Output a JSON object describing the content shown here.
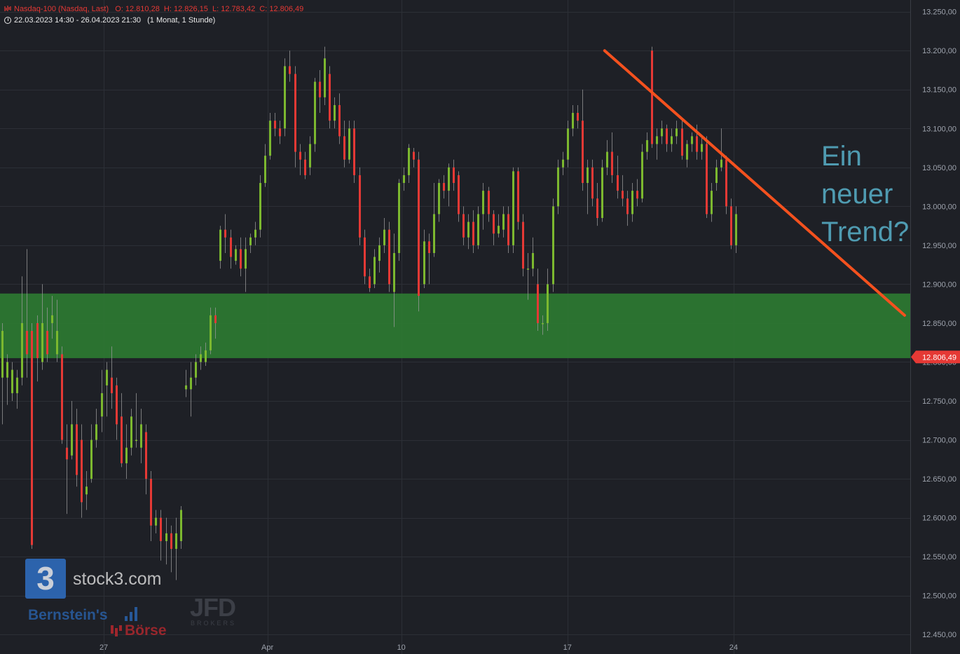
{
  "header": {
    "instrument": "Nasdaq-100 (Nasdaq, Last)",
    "ohlc": "O: 12.810,28  H: 12.826,15  L: 12.783,42  C: 12.806,49",
    "range": "22.03.2023 14:30 - 26.04.2023 21:30",
    "interval": "(1 Monat, 1 Stunde)"
  },
  "branding": {
    "logo_glyph": "3",
    "logo_text": "stock3.com",
    "partner_1": "Bernstein's",
    "partner_2": "Börse",
    "partner_3": "JFD",
    "partner_3_sub": "BROKERS"
  },
  "annotation": {
    "line1": "Ein",
    "line2": "neuer",
    "line3": "Trend?"
  },
  "chart_data": {
    "type": "candlestick",
    "timeframe": "1 hour",
    "ylim": [
      12425,
      13265
    ],
    "yticks": [
      12450,
      12500,
      12550,
      12600,
      12650,
      12700,
      12750,
      12800,
      12850,
      12900,
      12950,
      13000,
      13050,
      13100,
      13150,
      13200,
      13250
    ],
    "ytick_labels": [
      "12.450,00",
      "12.500,00",
      "12.550,00",
      "12.600,00",
      "12.650,00",
      "12.700,00",
      "12.750,00",
      "12.800,00",
      "12.850,00",
      "12.900,00",
      "12.950,00",
      "13.000,00",
      "13.050,00",
      "13.100,00",
      "13.150,00",
      "13.200,00",
      "13.250,00"
    ],
    "xlim": [
      0,
      182
    ],
    "xticks": [
      {
        "x": 20.5,
        "label": "27"
      },
      {
        "x": 53.5,
        "label": "Apr"
      },
      {
        "x": 80.5,
        "label": "10"
      },
      {
        "x": 114,
        "label": "17"
      },
      {
        "x": 147.5,
        "label": "24"
      }
    ],
    "last_price": 12806.49,
    "last_price_label": "12.806,49",
    "colors": {
      "up": "#7cb82f",
      "down": "#e53935",
      "zone": "#2e7d32",
      "trendline": "#f4511e",
      "grid": "#2c2f36",
      "background": "#1e2026",
      "axis_text": "#9ea3ad"
    },
    "support_zone": [
      12805,
      12888
    ],
    "trendline": {
      "from": [
        121.5,
        13200
      ],
      "to": [
        182,
        12860
      ]
    },
    "candles": [
      {
        "o": 12780,
        "c": 12840,
        "h": 12850,
        "l": 12720
      },
      {
        "o": 12780,
        "c": 12800,
        "h": 12810,
        "l": 12745
      },
      {
        "o": 12760,
        "c": 12790,
        "h": 12800,
        "l": 12750
      },
      {
        "o": 12760,
        "c": 12780,
        "h": 12790,
        "l": 12740
      },
      {
        "o": 12780,
        "c": 12850,
        "h": 12910,
        "l": 12770
      },
      {
        "o": 12840,
        "c": 12810,
        "h": 12945,
        "l": 12780
      },
      {
        "o": 12840,
        "c": 12565,
        "h": 12850,
        "l": 12560
      },
      {
        "o": 12850,
        "c": 12805,
        "h": 12860,
        "l": 12775
      },
      {
        "o": 12800,
        "c": 12850,
        "h": 12900,
        "l": 12790
      },
      {
        "o": 12840,
        "c": 12810,
        "h": 12870,
        "l": 12800
      },
      {
        "o": 12850,
        "c": 12860,
        "h": 12885,
        "l": 12830
      },
      {
        "o": 12810,
        "c": 12840,
        "h": 12880,
        "l": 12800
      },
      {
        "o": 12810,
        "c": 12700,
        "h": 12820,
        "l": 12695
      },
      {
        "o": 12690,
        "c": 12675,
        "h": 12720,
        "l": 12605
      },
      {
        "o": 12680,
        "c": 12720,
        "h": 12750,
        "l": 12675
      },
      {
        "o": 12720,
        "c": 12655,
        "h": 12740,
        "l": 12640
      },
      {
        "o": 12700,
        "c": 12620,
        "h": 12720,
        "l": 12600
      },
      {
        "o": 12630,
        "c": 12640,
        "h": 12660,
        "l": 12610
      },
      {
        "o": 12650,
        "c": 12700,
        "h": 12720,
        "l": 12645
      },
      {
        "o": 12700,
        "c": 12720,
        "h": 12740,
        "l": 12690
      },
      {
        "o": 12730,
        "c": 12760,
        "h": 12790,
        "l": 12710
      },
      {
        "o": 12770,
        "c": 12790,
        "h": 12800,
        "l": 12730
      },
      {
        "o": 12780,
        "c": 12760,
        "h": 12820,
        "l": 12740
      },
      {
        "o": 12770,
        "c": 12720,
        "h": 12780,
        "l": 12700
      },
      {
        "o": 12730,
        "c": 12670,
        "h": 12760,
        "l": 12665
      },
      {
        "o": 12670,
        "c": 12690,
        "h": 12720,
        "l": 12650
      },
      {
        "o": 12690,
        "c": 12730,
        "h": 12740,
        "l": 12680
      },
      {
        "o": 12700,
        "c": 12700,
        "h": 12760,
        "l": 12690
      },
      {
        "o": 12690,
        "c": 12720,
        "h": 12740,
        "l": 12670
      },
      {
        "o": 12710,
        "c": 12650,
        "h": 12720,
        "l": 12630
      },
      {
        "o": 12650,
        "c": 12590,
        "h": 12660,
        "l": 12570
      },
      {
        "o": 12590,
        "c": 12600,
        "h": 12610,
        "l": 12580
      },
      {
        "o": 12600,
        "c": 12570,
        "h": 12610,
        "l": 12545
      },
      {
        "o": 12570,
        "c": 12580,
        "h": 12600,
        "l": 12540
      },
      {
        "o": 12580,
        "c": 12560,
        "h": 12590,
        "l": 12530
      },
      {
        "o": 12560,
        "c": 12580,
        "h": 12600,
        "l": 12520
      },
      {
        "o": 12570,
        "c": 12610,
        "h": 12615,
        "l": 12560
      },
      {
        "o": 12765,
        "c": 12770,
        "h": 12790,
        "l": 12755
      },
      {
        "o": 12765,
        "c": 12780,
        "h": 12800,
        "l": 12730
      },
      {
        "o": 12780,
        "c": 12800,
        "h": 12810,
        "l": 12770
      },
      {
        "o": 12800,
        "c": 12810,
        "h": 12820,
        "l": 12790
      },
      {
        "o": 12800,
        "c": 12815,
        "h": 12825,
        "l": 12795
      },
      {
        "o": 12815,
        "c": 12860,
        "h": 12870,
        "l": 12810
      },
      {
        "o": 12860,
        "c": 12850,
        "h": 12870,
        "l": 12830
      },
      {
        "o": 12930,
        "c": 12970,
        "h": 12975,
        "l": 12920
      },
      {
        "o": 12970,
        "c": 12960,
        "h": 12990,
        "l": 12940
      },
      {
        "o": 12960,
        "c": 12935,
        "h": 12970,
        "l": 12920
      },
      {
        "o": 12930,
        "c": 12945,
        "h": 12950,
        "l": 12925
      },
      {
        "o": 12945,
        "c": 12920,
        "h": 12960,
        "l": 12910
      },
      {
        "o": 12920,
        "c": 12945,
        "h": 12960,
        "l": 12890
      },
      {
        "o": 12950,
        "c": 12960,
        "h": 12965,
        "l": 12940
      },
      {
        "o": 12960,
        "c": 12970,
        "h": 12980,
        "l": 12950
      },
      {
        "o": 12970,
        "c": 13030,
        "h": 13040,
        "l": 12960
      },
      {
        "o": 13030,
        "c": 13065,
        "h": 13080,
        "l": 13025
      },
      {
        "o": 13065,
        "c": 13110,
        "h": 13120,
        "l": 13060
      },
      {
        "o": 13110,
        "c": 13100,
        "h": 13120,
        "l": 13090
      },
      {
        "o": 13100,
        "c": 13090,
        "h": 13110,
        "l": 13080
      },
      {
        "o": 13100,
        "c": 13180,
        "h": 13190,
        "l": 13090
      },
      {
        "o": 13180,
        "c": 13170,
        "h": 13200,
        "l": 13160
      },
      {
        "o": 13170,
        "c": 13070,
        "h": 13180,
        "l": 13050
      },
      {
        "o": 13070,
        "c": 13060,
        "h": 13080,
        "l": 13040
      },
      {
        "o": 13060,
        "c": 13040,
        "h": 13070,
        "l": 13035
      },
      {
        "o": 13050,
        "c": 13080,
        "h": 13090,
        "l": 13040
      },
      {
        "o": 13080,
        "c": 13160,
        "h": 13165,
        "l": 13070
      },
      {
        "o": 13160,
        "c": 13140,
        "h": 13175,
        "l": 13120
      },
      {
        "o": 13140,
        "c": 13190,
        "h": 13205,
        "l": 13130
      },
      {
        "o": 13170,
        "c": 13110,
        "h": 13180,
        "l": 13100
      },
      {
        "o": 13110,
        "c": 13130,
        "h": 13140,
        "l": 13100
      },
      {
        "o": 13130,
        "c": 13090,
        "h": 13145,
        "l": 13080
      },
      {
        "o": 13090,
        "c": 13060,
        "h": 13110,
        "l": 13050
      },
      {
        "o": 13060,
        "c": 13100,
        "h": 13110,
        "l": 13055
      },
      {
        "o": 13100,
        "c": 13040,
        "h": 13110,
        "l": 13030
      },
      {
        "o": 13040,
        "c": 12960,
        "h": 13050,
        "l": 12950
      },
      {
        "o": 12960,
        "c": 12910,
        "h": 12970,
        "l": 12900
      },
      {
        "o": 12910,
        "c": 12895,
        "h": 12920,
        "l": 12890
      },
      {
        "o": 12900,
        "c": 12935,
        "h": 12945,
        "l": 12895
      },
      {
        "o": 12930,
        "c": 12950,
        "h": 12960,
        "l": 12915
      },
      {
        "o": 12950,
        "c": 12970,
        "h": 12985,
        "l": 12940
      },
      {
        "o": 12970,
        "c": 12900,
        "h": 12980,
        "l": 12890
      },
      {
        "o": 12890,
        "c": 12940,
        "h": 12965,
        "l": 12845
      },
      {
        "o": 12940,
        "c": 13030,
        "h": 13035,
        "l": 12930
      },
      {
        "o": 13030,
        "c": 13040,
        "h": 13050,
        "l": 13020
      },
      {
        "o": 13040,
        "c": 13075,
        "h": 13080,
        "l": 13030
      },
      {
        "o": 13070,
        "c": 13060,
        "h": 13075,
        "l": 13050
      },
      {
        "o": 13060,
        "c": 12885,
        "h": 13070,
        "l": 12865
      },
      {
        "o": 12900,
        "c": 12955,
        "h": 12970,
        "l": 12895
      },
      {
        "o": 12955,
        "c": 12940,
        "h": 12965,
        "l": 12900
      },
      {
        "o": 12940,
        "c": 12990,
        "h": 13030,
        "l": 12935
      },
      {
        "o": 12990,
        "c": 13030,
        "h": 13035,
        "l": 12980
      },
      {
        "o": 13030,
        "c": 13020,
        "h": 13040,
        "l": 13010
      },
      {
        "o": 13020,
        "c": 13050,
        "h": 13055,
        "l": 13000
      },
      {
        "o": 13050,
        "c": 13030,
        "h": 13060,
        "l": 13020
      },
      {
        "o": 13040,
        "c": 12990,
        "h": 13045,
        "l": 12980
      },
      {
        "o": 12990,
        "c": 12960,
        "h": 13000,
        "l": 12950
      },
      {
        "o": 12960,
        "c": 12980,
        "h": 12990,
        "l": 12945
      },
      {
        "o": 12980,
        "c": 12950,
        "h": 12995,
        "l": 12940
      },
      {
        "o": 12950,
        "c": 12990,
        "h": 13000,
        "l": 12945
      },
      {
        "o": 12990,
        "c": 13020,
        "h": 13030,
        "l": 12970
      },
      {
        "o": 13020,
        "c": 12990,
        "h": 13025,
        "l": 12980
      },
      {
        "o": 12990,
        "c": 12965,
        "h": 12995,
        "l": 12950
      },
      {
        "o": 12965,
        "c": 12975,
        "h": 12990,
        "l": 12960
      },
      {
        "o": 12970,
        "c": 12990,
        "h": 13000,
        "l": 12960
      },
      {
        "o": 12990,
        "c": 12950,
        "h": 13000,
        "l": 12940
      },
      {
        "o": 12950,
        "c": 13045,
        "h": 13050,
        "l": 12940
      },
      {
        "o": 13045,
        "c": 12980,
        "h": 13050,
        "l": 12970
      },
      {
        "o": 12980,
        "c": 12920,
        "h": 12990,
        "l": 12910
      },
      {
        "o": 12920,
        "c": 12920,
        "h": 12940,
        "l": 12880
      },
      {
        "o": 12920,
        "c": 12940,
        "h": 12960,
        "l": 12910
      },
      {
        "o": 12900,
        "c": 12850,
        "h": 12920,
        "l": 12840
      },
      {
        "o": 12850,
        "c": 12850,
        "h": 12860,
        "l": 12835
      },
      {
        "o": 12850,
        "c": 12900,
        "h": 12920,
        "l": 12840
      },
      {
        "o": 12900,
        "c": 13000,
        "h": 13010,
        "l": 12890
      },
      {
        "o": 13000,
        "c": 13050,
        "h": 13060,
        "l": 12990
      },
      {
        "o": 13050,
        "c": 13060,
        "h": 13070,
        "l": 13040
      },
      {
        "o": 13060,
        "c": 13100,
        "h": 13110,
        "l": 13050
      },
      {
        "o": 13100,
        "c": 13120,
        "h": 13130,
        "l": 13090
      },
      {
        "o": 13120,
        "c": 13110,
        "h": 13130,
        "l": 13100
      },
      {
        "o": 13110,
        "c": 13030,
        "h": 13150,
        "l": 13020
      },
      {
        "o": 13030,
        "c": 13050,
        "h": 13060,
        "l": 12990
      },
      {
        "o": 13050,
        "c": 13010,
        "h": 13060,
        "l": 13000
      },
      {
        "o": 13010,
        "c": 12985,
        "h": 13030,
        "l": 12975
      },
      {
        "o": 12985,
        "c": 13050,
        "h": 13060,
        "l": 12980
      },
      {
        "o": 13050,
        "c": 13070,
        "h": 13085,
        "l": 13040
      },
      {
        "o": 13070,
        "c": 13040,
        "h": 13095,
        "l": 13030
      },
      {
        "o": 13040,
        "c": 13020,
        "h": 13065,
        "l": 13010
      },
      {
        "o": 13020,
        "c": 13010,
        "h": 13040,
        "l": 13000
      },
      {
        "o": 13010,
        "c": 12990,
        "h": 13020,
        "l": 12975
      },
      {
        "o": 12990,
        "c": 13020,
        "h": 13030,
        "l": 12980
      },
      {
        "o": 13020,
        "c": 13010,
        "h": 13035,
        "l": 13000
      },
      {
        "o": 13010,
        "c": 13070,
        "h": 13080,
        "l": 13005
      },
      {
        "o": 13070,
        "c": 13085,
        "h": 13095,
        "l": 13060
      },
      {
        "o": 13200,
        "c": 13080,
        "h": 13205,
        "l": 13075
      },
      {
        "o": 13080,
        "c": 13090,
        "h": 13100,
        "l": 13060
      },
      {
        "o": 13090,
        "c": 13100,
        "h": 13110,
        "l": 13080
      },
      {
        "o": 13100,
        "c": 13080,
        "h": 13105,
        "l": 13070
      },
      {
        "o": 13080,
        "c": 13090,
        "h": 13100,
        "l": 13070
      },
      {
        "o": 13090,
        "c": 13100,
        "h": 13110,
        "l": 13080
      },
      {
        "o": 13100,
        "c": 13065,
        "h": 13110,
        "l": 13060
      },
      {
        "o": 13060,
        "c": 13080,
        "h": 13085,
        "l": 13050
      },
      {
        "o": 13080,
        "c": 13090,
        "h": 13095,
        "l": 13070
      },
      {
        "o": 13090,
        "c": 13070,
        "h": 13105,
        "l": 13060
      },
      {
        "o": 13070,
        "c": 13080,
        "h": 13090,
        "l": 13060
      },
      {
        "o": 13080,
        "c": 12990,
        "h": 13090,
        "l": 12985
      },
      {
        "o": 12990,
        "c": 13020,
        "h": 13030,
        "l": 12980
      },
      {
        "o": 13030,
        "c": 13050,
        "h": 13060,
        "l": 13020
      },
      {
        "o": 13050,
        "c": 13060,
        "h": 13100,
        "l": 13045
      },
      {
        "o": 13060,
        "c": 13000,
        "h": 13065,
        "l": 12990
      },
      {
        "o": 13000,
        "c": 12950,
        "h": 13010,
        "l": 12945
      },
      {
        "o": 12950,
        "c": 12990,
        "h": 13000,
        "l": 12940
      }
    ]
  }
}
